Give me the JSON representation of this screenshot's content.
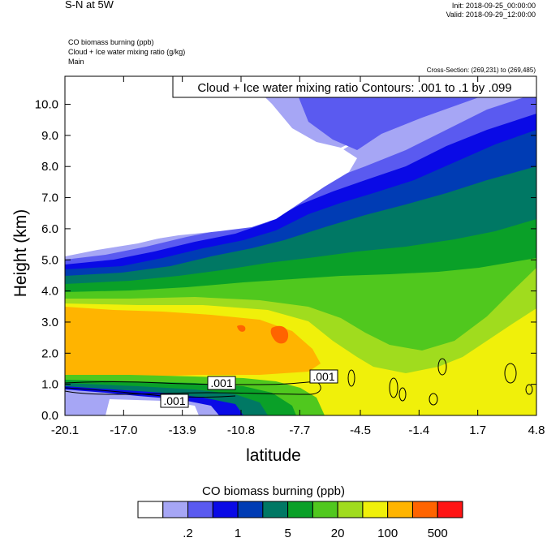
{
  "header": {
    "title": "S-N at 5W",
    "init": "Init: 2018-09-25_00:00:00",
    "valid": "Valid: 2018-09-29_12:00:00",
    "fields": [
      "CO biomass burning   (ppb)",
      "Cloud + Ice water mixing ratio   (g/kg)",
      "Main"
    ],
    "cross_section": "Cross-Section: (269,231) to (269,485)"
  },
  "chart_data": {
    "type": "heatmap",
    "title": "S-N at 5W",
    "xlabel": "latitude",
    "ylabel": "Height (km)",
    "x_ticks": [
      "-20.1",
      "-17.0",
      "-13.9",
      "-10.8",
      "-7.7",
      "-4.5",
      "-1.4",
      "1.7",
      "4.8"
    ],
    "y_ticks": [
      "0.0",
      "1.0",
      "2.0",
      "3.0",
      "4.0",
      "5.0",
      "6.0",
      "7.0",
      "8.0",
      "9.0",
      "10.0"
    ],
    "xlim": [
      -20.1,
      4.8
    ],
    "ylim": [
      0.0,
      10.9
    ],
    "contour_title": "Cloud + Ice water mixing ratio Contours: .001 to .1 by .099",
    "contour_labels": [
      ".001",
      ".001",
      ".001"
    ],
    "colorbar": {
      "title": "CO biomass burning  (ppb)",
      "colors": [
        "#ffffff",
        "#a6a6f5",
        "#5a5af0",
        "#0a0ae6",
        "#003cb4",
        "#007864",
        "#0aa028",
        "#50c81e",
        "#a0dc1e",
        "#f0f00a",
        "#ffb400",
        "#ff6400",
        "#ff1414"
      ],
      "labels": [
        ".2",
        "1",
        "5",
        "20",
        "100",
        "500"
      ]
    }
  }
}
